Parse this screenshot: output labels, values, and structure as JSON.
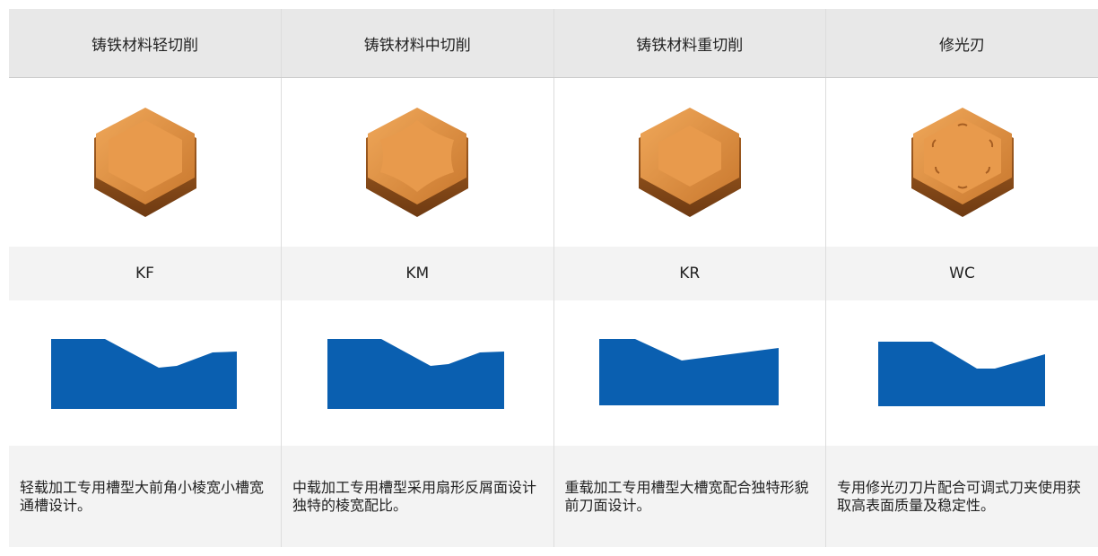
{
  "table": {
    "header": [
      "铸铁材料轻切削",
      "铸铁材料中切削",
      "铸铁材料重切削",
      "修光刃"
    ],
    "codes": [
      "KF",
      "KM",
      "KR",
      "WC"
    ],
    "descriptions": [
      "轻载加工专用槽型大前角小棱宽小槽宽通槽设计。",
      "中载加工专用槽型采用扇形反屑面设计独特的棱宽配比。",
      "重载加工专用槽型大槽宽配合独特形貌前刀面设计。",
      "专用修光刃刀片配合可调式刀夹使用获取高表面质量及稳定性。"
    ]
  }
}
